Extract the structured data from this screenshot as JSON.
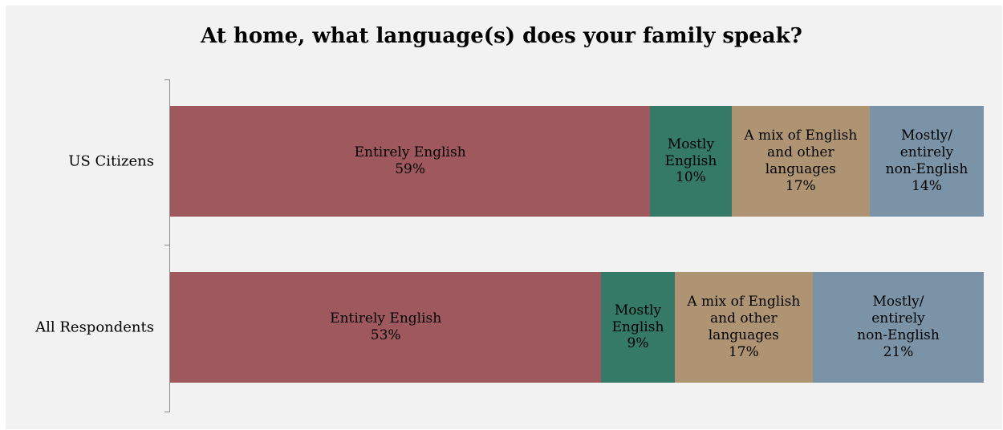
{
  "chart_data": {
    "type": "bar",
    "orientation": "horizontal",
    "stacked": true,
    "title": "At home, what language(s) does your family speak?",
    "xlabel": "",
    "ylabel": "",
    "categories": [
      "US Citizens",
      "All Respondents"
    ],
    "series": [
      {
        "name": "Entirely English",
        "color": "#9e585e",
        "values": [
          59,
          53
        ],
        "labels": [
          "Entirely English\n59%",
          "Entirely English\n53%"
        ]
      },
      {
        "name": "Mostly English",
        "color": "#347a66",
        "values": [
          10,
          9
        ],
        "labels": [
          "Mostly\nEnglish\n10%",
          "Mostly\nEnglish\n9%"
        ]
      },
      {
        "name": "A mix of English and other languages",
        "color": "#ae9472",
        "values": [
          17,
          17
        ],
        "labels": [
          "A mix of English\nand other\nlanguages\n17%",
          "A mix of English\nand other\nlanguages\n17%"
        ]
      },
      {
        "name": "Mostly/ entirely non-English",
        "color": "#7b93a6",
        "values": [
          14,
          21
        ],
        "labels": [
          "Mostly/\nentirely\nnon-English\n14%",
          "Mostly/\nentirely\nnon-English\n21%"
        ]
      }
    ],
    "xlim": [
      0,
      100
    ],
    "grid": false,
    "legend": "none"
  }
}
